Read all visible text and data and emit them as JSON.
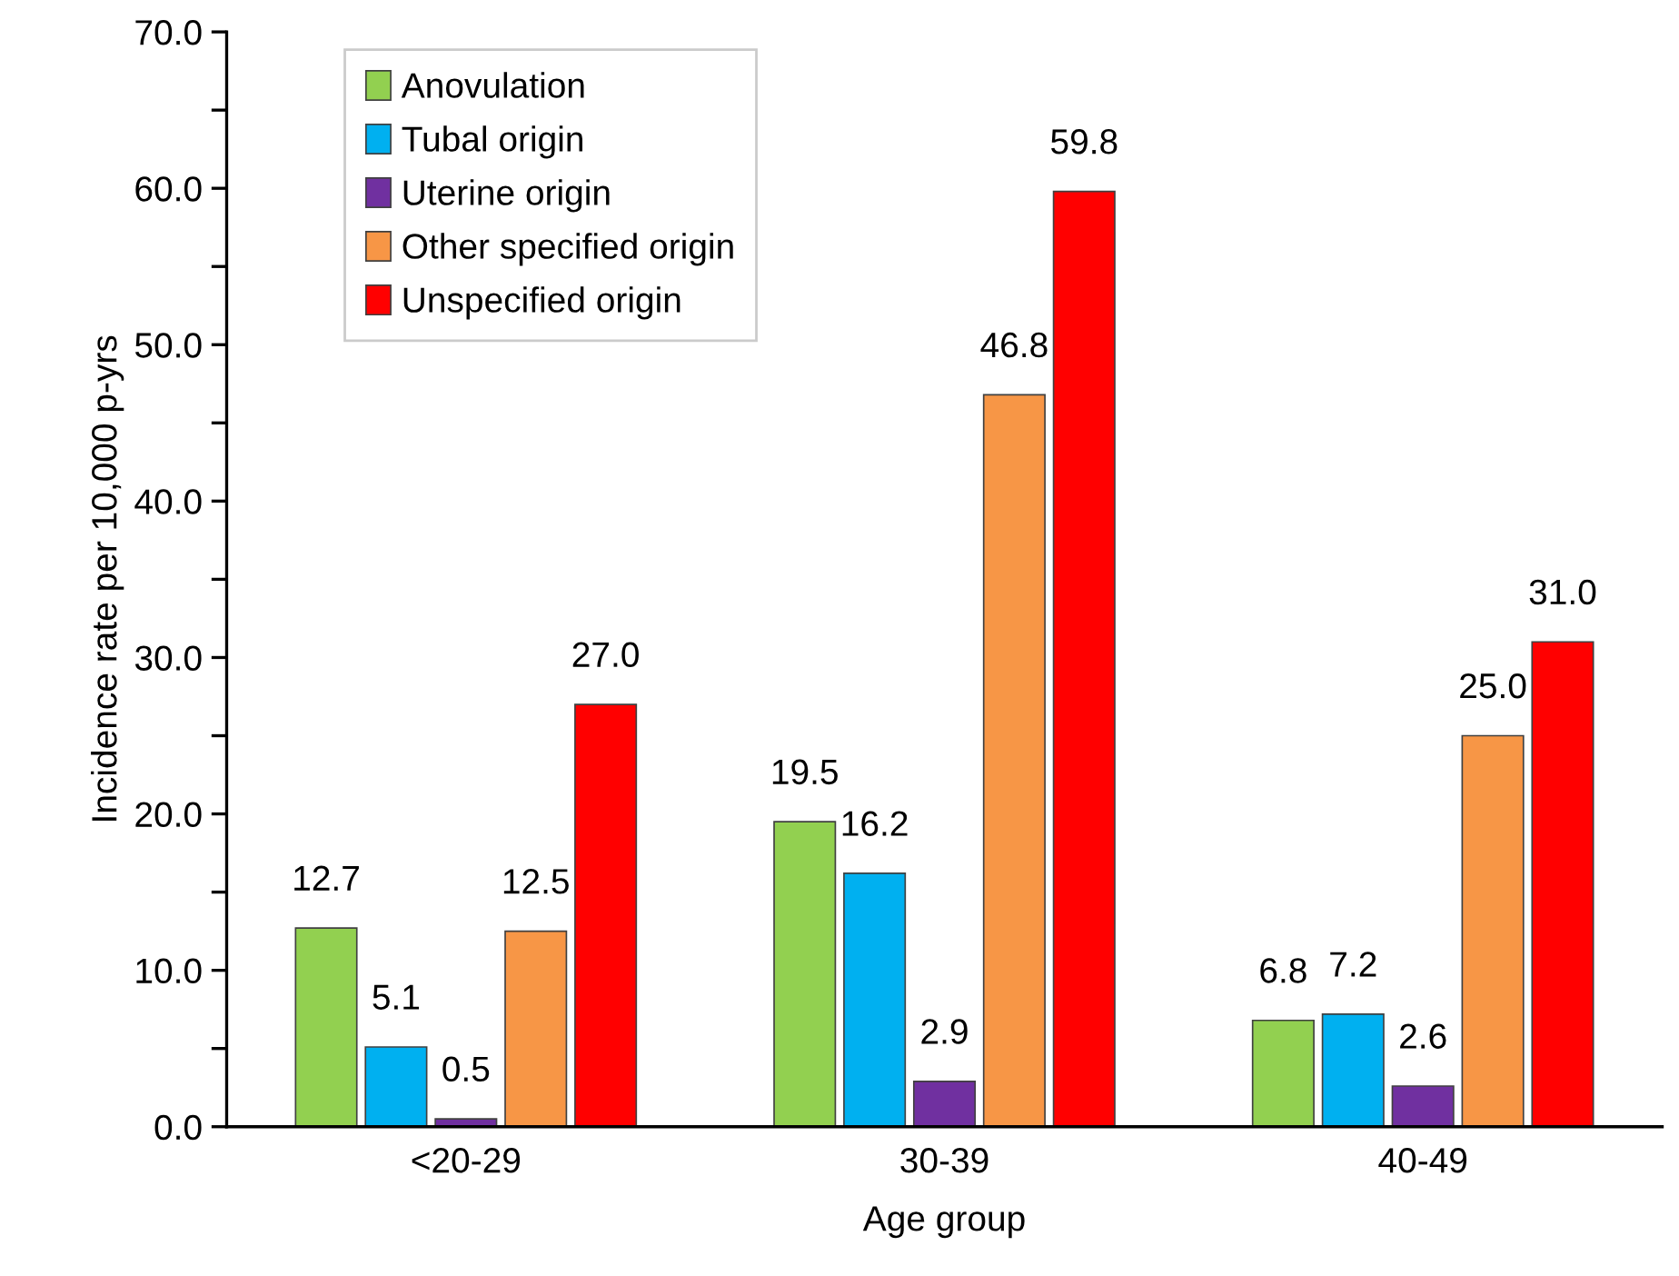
{
  "chart_data": {
    "type": "bar",
    "xlabel": "Age group",
    "ylabel": "Incidence rate per 10,000 p-yrs",
    "categories": [
      "<20-29",
      "30-39",
      "40-49"
    ],
    "series": [
      {
        "name": "Anovulation",
        "color": "#92d050",
        "values": [
          12.7,
          19.5,
          6.8
        ],
        "value_labels": [
          "12.7",
          "19.5",
          "6.8"
        ]
      },
      {
        "name": "Tubal origin",
        "color": "#00b0f0",
        "values": [
          5.1,
          16.2,
          7.2
        ],
        "value_labels": [
          "5.1",
          "16.2",
          "7.2"
        ]
      },
      {
        "name": "Uterine origin",
        "color": "#7030a0",
        "values": [
          0.5,
          2.9,
          2.6
        ],
        "value_labels": [
          "0.5",
          "2.9",
          "2.6"
        ]
      },
      {
        "name": "Other specified origin",
        "color": "#f79646",
        "values": [
          12.5,
          46.8,
          25.0
        ],
        "value_labels": [
          "12.5",
          "46.8",
          "25.0"
        ]
      },
      {
        "name": "Unspecified origin",
        "color": "#ff0000",
        "values": [
          27.0,
          59.8,
          31.0
        ],
        "value_labels": [
          "27.0",
          "59.8",
          "31.0"
        ]
      }
    ],
    "ylim": [
      0,
      70
    ],
    "yticks": [
      {
        "value": 0,
        "label": "0.0"
      },
      {
        "value": 5,
        "label": null
      },
      {
        "value": 10,
        "label": "10.0"
      },
      {
        "value": 15,
        "label": null
      },
      {
        "value": 20,
        "label": "20.0"
      },
      {
        "value": 25,
        "label": null
      },
      {
        "value": 30,
        "label": "30.0"
      },
      {
        "value": 35,
        "label": null
      },
      {
        "value": 40,
        "label": "40.0"
      },
      {
        "value": 45,
        "label": null
      },
      {
        "value": 50,
        "label": "50.0"
      },
      {
        "value": 55,
        "label": null
      },
      {
        "value": 60,
        "label": "60.0"
      },
      {
        "value": 65,
        "label": null
      },
      {
        "value": 70,
        "label": "70.0"
      }
    ],
    "legend": "top left",
    "grid": false
  }
}
